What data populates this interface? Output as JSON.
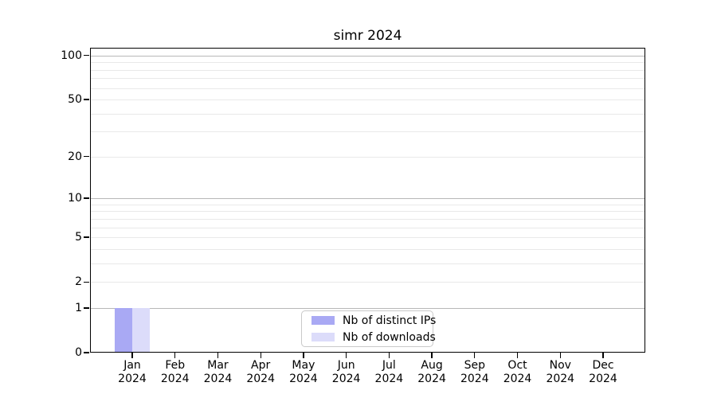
{
  "chart_data": {
    "type": "bar",
    "title": "simr 2024",
    "categories": [
      "Jan 2024",
      "Feb 2024",
      "Mar 2024",
      "Apr 2024",
      "May 2024",
      "Jun 2024",
      "Jul 2024",
      "Aug 2024",
      "Sep 2024",
      "Oct 2024",
      "Nov 2024",
      "Dec 2024"
    ],
    "series": [
      {
        "name": "Nb of distinct IPs",
        "color": "#a9a9f4",
        "values": [
          1,
          0,
          0,
          0,
          0,
          0,
          0,
          0,
          0,
          0,
          0,
          0
        ]
      },
      {
        "name": "Nb of downloads",
        "color": "#dcdcfa",
        "values": [
          1,
          0,
          0,
          0,
          0,
          0,
          0,
          0,
          0,
          0,
          0,
          0
        ]
      }
    ],
    "xlabel": "",
    "ylabel": "",
    "y_axis": {
      "scale": "log1p",
      "ylim": [
        0,
        113
      ],
      "tick_values": [
        0,
        1,
        2,
        5,
        10,
        20,
        50,
        100
      ],
      "tick_labels": [
        "0",
        "1",
        "2",
        "5",
        "10",
        "20",
        "50",
        "100"
      ],
      "major_gridlines": [
        1,
        10,
        100
      ],
      "minor_gridlines": [
        2,
        3,
        4,
        5,
        6,
        7,
        8,
        9,
        20,
        30,
        40,
        50,
        60,
        70,
        80,
        90
      ]
    },
    "legend": {
      "position": "lower center"
    },
    "colors": {
      "major_grid": "#b8b8b8",
      "minor_grid": "#e9e9e9",
      "axis": "#000000",
      "background": "#ffffff"
    }
  }
}
